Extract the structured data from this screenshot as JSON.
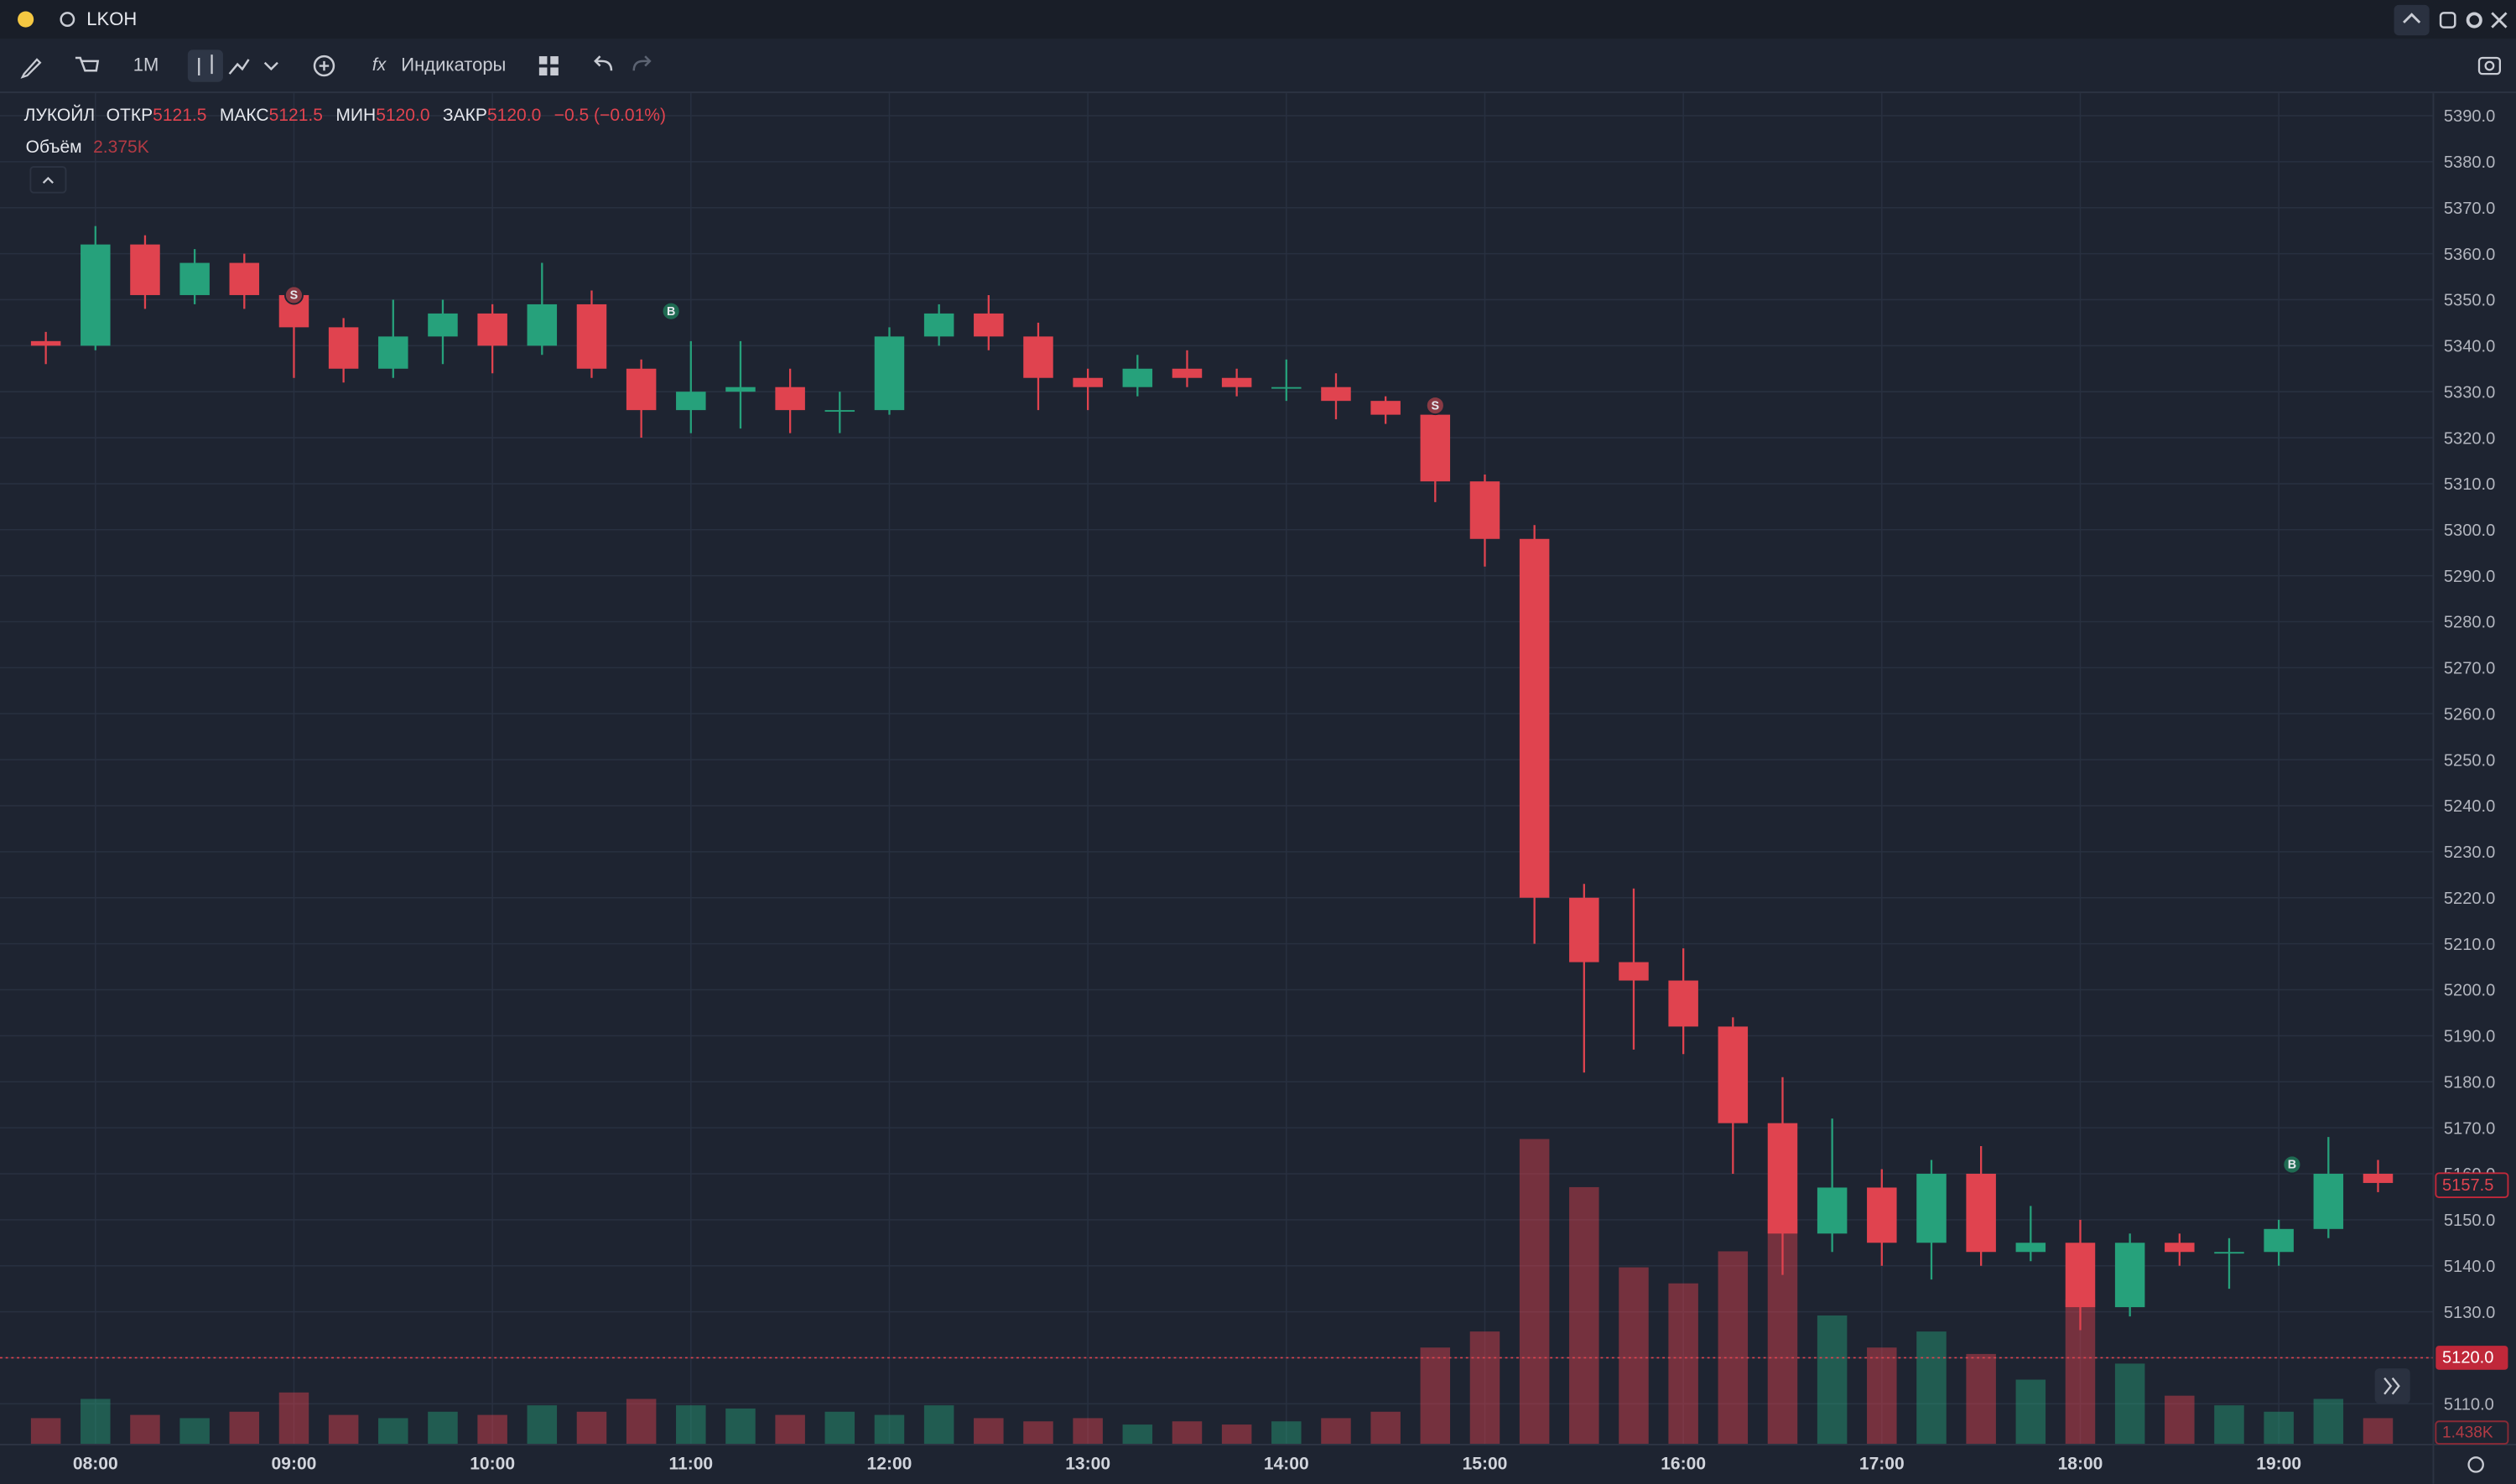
{
  "toolbar": {
    "ticker": "LKOH",
    "interval": "1M",
    "indicators": "Индикаторы"
  },
  "ohlc_legend": {
    "symbol": "ЛУКОЙЛ",
    "open_label": "ОТКР",
    "open": "5121.5",
    "high_label": "МАКС",
    "high": "5121.5",
    "low_label": "МИН",
    "low": "5120.0",
    "close_label": "ЗАКР",
    "close": "5120.0",
    "change": "−0.5 (−0.01%)",
    "volume_label": "Объём",
    "volume": "2.375K"
  },
  "chart_data": {
    "type": "candlestick",
    "x": [
      "07:45",
      "08:00",
      "08:15",
      "08:30",
      "08:45",
      "09:00",
      "09:15",
      "09:30",
      "09:45",
      "10:00",
      "10:15",
      "10:30",
      "10:45",
      "11:00",
      "11:15",
      "11:30",
      "11:45",
      "12:00",
      "12:15",
      "12:30",
      "12:45",
      "13:00",
      "13:15",
      "13:30",
      "13:45",
      "14:00",
      "14:15",
      "14:30",
      "14:45",
      "15:00",
      "15:15",
      "15:30",
      "15:45",
      "16:00",
      "16:15",
      "16:30",
      "16:45",
      "17:00",
      "17:15",
      "17:30",
      "17:45",
      "18:00",
      "18:15",
      "18:30",
      "18:45",
      "19:00",
      "19:15",
      "19:30"
    ],
    "open": [
      5341,
      5340,
      5362,
      5351,
      5358,
      5351,
      5344,
      5335,
      5342,
      5347,
      5340,
      5349,
      5335,
      5326,
      5330,
      5331,
      5326,
      5326,
      5342,
      5347,
      5342,
      5333,
      5331,
      5335,
      5333,
      5331,
      5331,
      5328,
      5325,
      5310.5,
      5298,
      5220,
      5206,
      5202,
      5192,
      5171,
      5147,
      5157,
      5145,
      5160,
      5143,
      5145,
      5131,
      5145,
      5143,
      5143,
      5148,
      5160
    ],
    "high": [
      5343,
      5366,
      5364,
      5361,
      5360,
      5353,
      5346,
      5350,
      5350,
      5349,
      5358,
      5352,
      5337,
      5341,
      5341,
      5335,
      5330,
      5344,
      5349,
      5351,
      5345,
      5335,
      5338,
      5339,
      5335,
      5337,
      5334,
      5329,
      5327,
      5312,
      5301,
      5223,
      5222,
      5209,
      5194,
      5181,
      5172,
      5161,
      5163,
      5166,
      5153,
      5150,
      5147,
      5147,
      5146,
      5150,
      5168,
      5163
    ],
    "low": [
      5336,
      5339,
      5348,
      5349,
      5348,
      5333,
      5332,
      5333,
      5336,
      5334,
      5338,
      5333,
      5320,
      5321,
      5322,
      5321,
      5321,
      5325,
      5340,
      5339,
      5326,
      5326,
      5329,
      5331,
      5329,
      5328,
      5324,
      5323,
      5306,
      5292,
      5210,
      5182,
      5187,
      5186,
      5160,
      5138,
      5143,
      5140,
      5137,
      5140,
      5141,
      5126,
      5129,
      5140,
      5135,
      5140,
      5146,
      5156
    ],
    "close": [
      5340,
      5362,
      5351,
      5358,
      5351,
      5344,
      5335,
      5342,
      5347,
      5340,
      5349,
      5335,
      5326,
      5330,
      5331,
      5326,
      5326,
      5342,
      5347,
      5342,
      5333,
      5331,
      5335,
      5333,
      5331,
      5331,
      5328,
      5325,
      5310.5,
      5298,
      5220,
      5206,
      5202,
      5192,
      5171,
      5147,
      5157,
      5145,
      5160,
      5143,
      5145,
      5131,
      5145,
      5143,
      5143,
      5148,
      5160,
      5158
    ],
    "volume": [
      8,
      14,
      9,
      8,
      10,
      16,
      9,
      8,
      10,
      9,
      12,
      10,
      14,
      12,
      11,
      9,
      10,
      9,
      12,
      8,
      7,
      8,
      6,
      7,
      6,
      7,
      8,
      10,
      30,
      35,
      95,
      80,
      55,
      50,
      60,
      70,
      40,
      30,
      35,
      28,
      20,
      45,
      25,
      15,
      12,
      10,
      14,
      8
    ],
    "vlim": [
      0,
      110
    ],
    "up_color": "#26a17b",
    "down_color": "#e0434f",
    "xlim": [
      "07:36",
      "19:46"
    ],
    "xticks": [
      "08:00",
      "09:00",
      "10:00",
      "11:00",
      "12:00",
      "13:00",
      "14:00",
      "15:00",
      "16:00",
      "17:00",
      "18:00",
      "19:00"
    ],
    "ylim": [
      5101.3,
      5394.9
    ],
    "yticks": [
      {
        "value": 5110,
        "label": "5110.0"
      },
      {
        "value": 5120,
        "label": "5120.0"
      },
      {
        "value": 5130,
        "label": "5130.0"
      },
      {
        "value": 5140,
        "label": "5140.0"
      },
      {
        "value": 5150,
        "label": "5150.0"
      },
      {
        "value": 5160,
        "label": "5160.0"
      },
      {
        "value": 5170,
        "label": "5170.0"
      },
      {
        "value": 5180,
        "label": "5180.0"
      },
      {
        "value": 5190,
        "label": "5190.0"
      },
      {
        "value": 5200,
        "label": "5200.0"
      },
      {
        "value": 5210,
        "label": "5210.0"
      },
      {
        "value": 5220,
        "label": "5220.0"
      },
      {
        "value": 5230,
        "label": "5230.0"
      },
      {
        "value": 5240,
        "label": "5240.0"
      },
      {
        "value": 5250,
        "label": "5250.0"
      },
      {
        "value": 5260,
        "label": "5260.0"
      },
      {
        "value": 5270,
        "label": "5270.0"
      },
      {
        "value": 5280,
        "label": "5280.0"
      },
      {
        "value": 5290,
        "label": "5290.0"
      },
      {
        "value": 5300,
        "label": "5300.0"
      },
      {
        "value": 5310,
        "label": "5310.0"
      },
      {
        "value": 5320,
        "label": "5320.0"
      },
      {
        "value": 5330,
        "label": "5330.0"
      },
      {
        "value": 5340,
        "label": "5340.0"
      },
      {
        "value": 5350,
        "label": "5350.0"
      },
      {
        "value": 5360,
        "label": "5360.0"
      },
      {
        "value": 5370,
        "label": "5370.0"
      },
      {
        "value": 5380,
        "label": "5380.0"
      },
      {
        "value": 5390,
        "label": "5390.0"
      }
    ],
    "grid": true,
    "last_price": 5157.5,
    "price_line": {
      "value": 5120,
      "label": "5120.0"
    },
    "volume_marker": "1.438K",
    "markers": [
      {
        "label": "S",
        "x": "09:00",
        "price": 5351
      },
      {
        "label": "B",
        "x": "10:54",
        "price": 5347.5
      },
      {
        "label": "S",
        "x": "14:45",
        "price": 5327
      },
      {
        "label": "B",
        "x": "19:04",
        "price": 5162
      }
    ]
  }
}
